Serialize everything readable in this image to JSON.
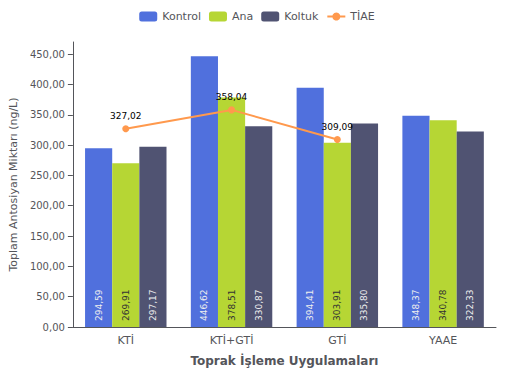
{
  "chart_data": {
    "type": "bar",
    "categories": [
      "KTİ",
      "KTİ+GTİ",
      "GTİ",
      "YAAE"
    ],
    "series": [
      {
        "name": "Kontrol",
        "type": "bar",
        "values": [
          294.59,
          446.62,
          394.41,
          348.37
        ],
        "value_labels": [
          "294,59",
          "446,62",
          "394,41",
          "348,37"
        ]
      },
      {
        "name": "Ana",
        "type": "bar",
        "values": [
          269.91,
          378.51,
          303.91,
          340.78
        ],
        "value_labels": [
          "269,91",
          "378,51",
          "303,91",
          "340,78"
        ]
      },
      {
        "name": "Koltuk",
        "type": "bar",
        "values": [
          297.17,
          330.87,
          335.8,
          322.33
        ],
        "value_labels": [
          "297,17",
          "330,87",
          "335,80",
          "322,33"
        ]
      },
      {
        "name": "TİAE",
        "type": "line",
        "marker": "circle",
        "values": [
          327.02,
          358.04,
          309.09,
          null
        ],
        "value_labels": [
          "327,02",
          "358,04",
          "309,09",
          null
        ]
      }
    ],
    "xlabel": "Toprak İşleme Uygulamaları",
    "ylabel": "Toplam Antosiyan Miktarı (ng/L)",
    "ylim": [
      0,
      470
    ],
    "yticks": [
      {
        "value": 0,
        "label": "0,00"
      },
      {
        "value": 50,
        "label": "50,00"
      },
      {
        "value": 100,
        "label": "100,00"
      },
      {
        "value": 150,
        "label": "150,00"
      },
      {
        "value": 200,
        "label": "200,00"
      },
      {
        "value": 250,
        "label": "250,00"
      },
      {
        "value": 300,
        "label": "300,00"
      },
      {
        "value": 350,
        "label": "350,00"
      },
      {
        "value": 400,
        "label": "400,00"
      },
      {
        "value": 450,
        "label": "450,00"
      }
    ],
    "data_labels": true,
    "legend": "top",
    "grid": false
  }
}
